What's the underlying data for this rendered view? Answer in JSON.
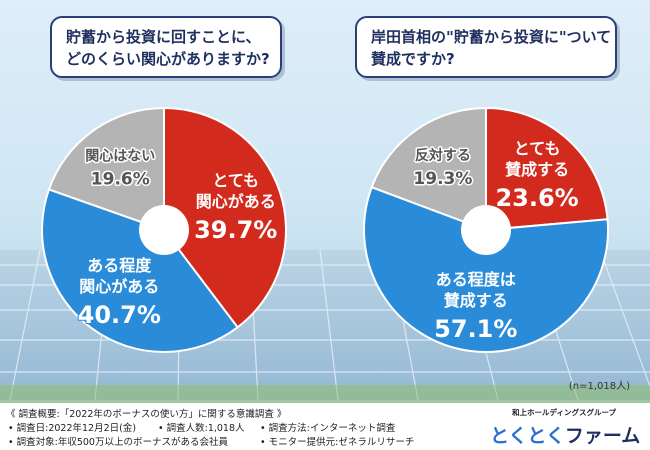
{
  "questions": {
    "q1": [
      "貯蓄から投資に回すことに、",
      "どのくらい関心がありますか?"
    ],
    "q2": [
      "岸田首相の\"貯蓄から投資に\"ついて",
      "賛成ですか?"
    ]
  },
  "chart_data": [
    {
      "type": "pie",
      "title": "貯蓄から投資に回すことに、どのくらい関心がありますか?",
      "slices": [
        {
          "label": [
            "とても",
            "関心がある"
          ],
          "value": 39.7,
          "display": "39.7%",
          "color": "#d32a1e"
        },
        {
          "label": [
            "ある程度",
            "関心がある"
          ],
          "value": 40.7,
          "display": "40.7%",
          "color": "#2a8bd9"
        },
        {
          "label": [
            "関心はない"
          ],
          "value": 19.6,
          "display": "19.6%",
          "color": "#b4b4b4"
        }
      ]
    },
    {
      "type": "pie",
      "title": "岸田首相の\"貯蓄から投資に\"ついて賛成ですか?",
      "slices": [
        {
          "label": [
            "とても",
            "賛成する"
          ],
          "value": 23.6,
          "display": "23.6%",
          "color": "#d32a1e"
        },
        {
          "label": [
            "ある程度は",
            "賛成する"
          ],
          "value": 57.1,
          "display": "57.1%",
          "color": "#2a8bd9"
        },
        {
          "label": [
            "反対する"
          ],
          "value": 19.3,
          "display": "19.3%",
          "color": "#b4b4b4"
        }
      ]
    }
  ],
  "note": "(n=1,018人)",
  "survey": {
    "overview": "《 調査概要:「2022年のボーナスの使い方」に関する意識調査 》",
    "date": "• 調査日:2022年12月2日(金)",
    "count": "• 調査人数:1,018人",
    "method": "• 調査方法:インターネット調査",
    "target": "• 調査対象:年収500万以上のボーナスがある会社員",
    "provider": "• モニター提供元:ゼネラルリサーチ"
  },
  "logo": {
    "company": "和上ホールディングスグループ",
    "name_part1": "とくとく",
    "name_part2": "ファーム",
    "color_part1": "#2a6fd0",
    "color_part2": "#1f2f5f"
  }
}
